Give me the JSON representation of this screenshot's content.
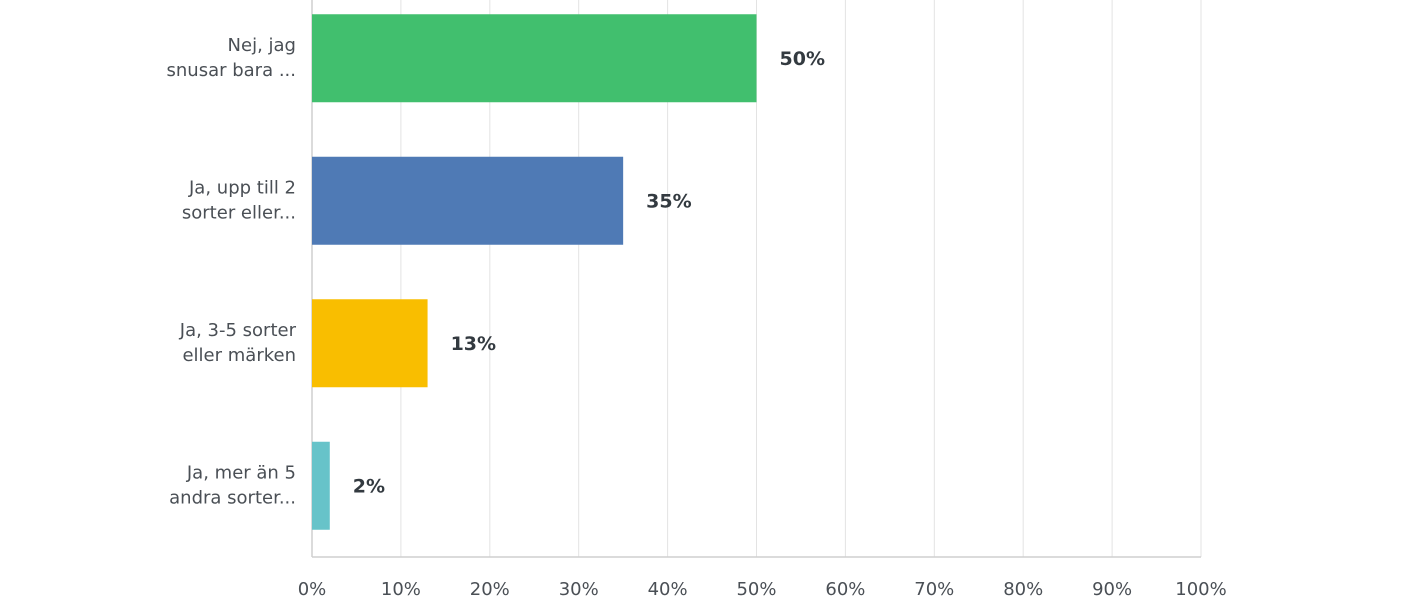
{
  "chart_data": {
    "type": "bar",
    "orientation": "horizontal",
    "categories": [
      [
        "Nej, jag",
        "snusar bara ..."
      ],
      [
        "Ja, upp till 2",
        "sorter eller..."
      ],
      [
        "Ja, 3-5 sorter",
        "eller märken"
      ],
      [
        "Ja, mer än 5",
        "andra sorter..."
      ]
    ],
    "values": [
      50,
      35,
      13,
      2
    ],
    "value_labels": [
      "50%",
      "35%",
      "13%",
      "2%"
    ],
    "colors": [
      "#41bf6e",
      "#4f7ab5",
      "#f9be00",
      "#67c3c9"
    ],
    "xlim": [
      0,
      100
    ],
    "xticks": [
      {
        "value": 0,
        "label": "0%"
      },
      {
        "value": 10,
        "label": "10%"
      },
      {
        "value": 20,
        "label": "20%"
      },
      {
        "value": 30,
        "label": "30%"
      },
      {
        "value": 40,
        "label": "40%"
      },
      {
        "value": 50,
        "label": "50%"
      },
      {
        "value": 60,
        "label": "60%"
      },
      {
        "value": 70,
        "label": "70%"
      },
      {
        "value": 80,
        "label": "80%"
      },
      {
        "value": 90,
        "label": "90%"
      },
      {
        "value": 100,
        "label": "100%"
      }
    ],
    "grid": true
  }
}
